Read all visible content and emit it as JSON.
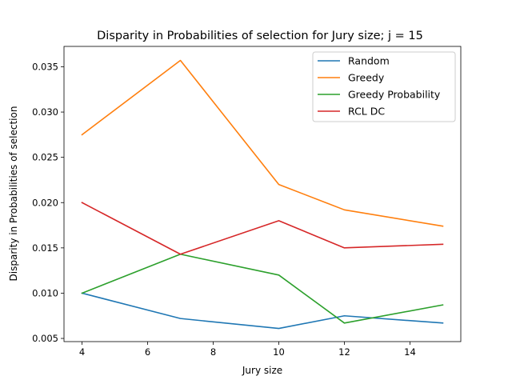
{
  "chart_data": {
    "type": "line",
    "title": "Disparity in Probabilities of selection for Jury size; j = 15",
    "xlabel": "Jury size",
    "ylabel": "Disparity in Probabilities of selection",
    "x": [
      4,
      7,
      10,
      12,
      15
    ],
    "xlim": [
      3.45,
      15.55
    ],
    "ylim": [
      0.00465,
      0.03725
    ],
    "xticks": [
      4,
      6,
      8,
      10,
      12,
      14
    ],
    "xtick_labels": [
      "4",
      "6",
      "8",
      "10",
      "12",
      "14"
    ],
    "yticks": [
      0.005,
      0.01,
      0.015,
      0.02,
      0.025,
      0.03,
      0.035
    ],
    "ytick_labels": [
      "0.005",
      "0.010",
      "0.015",
      "0.020",
      "0.025",
      "0.030",
      "0.035"
    ],
    "grid": false,
    "legend_position": "top-right",
    "series": [
      {
        "name": "Random",
        "color": "#1f77b4",
        "values": [
          0.01,
          0.0072,
          0.0061,
          0.0075,
          0.0067
        ]
      },
      {
        "name": "Greedy",
        "color": "#ff7f0e",
        "values": [
          0.0275,
          0.0357,
          0.022,
          0.0192,
          0.0174
        ]
      },
      {
        "name": "Greedy Probability",
        "color": "#2ca02c",
        "values": [
          0.01,
          0.0143,
          0.012,
          0.0067,
          0.0087
        ]
      },
      {
        "name": "RCL DC",
        "color": "#d62728",
        "values": [
          0.02,
          0.0143,
          0.018,
          0.015,
          0.0154
        ]
      }
    ]
  }
}
